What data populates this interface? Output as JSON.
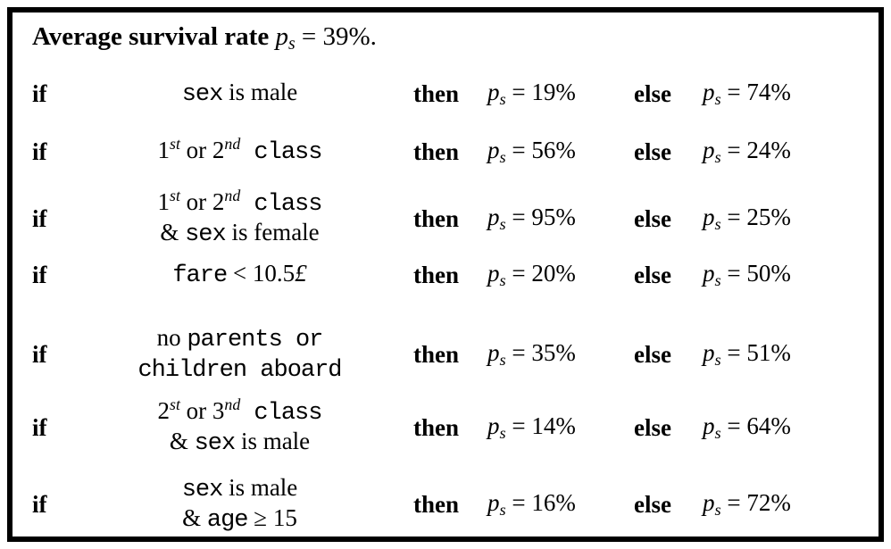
{
  "title": {
    "label": "Average survival rate",
    "math_var": "p",
    "math_sub": "s",
    "math_rest": "= 39%."
  },
  "keywords": {
    "if": "if",
    "then": "then",
    "else": "else"
  },
  "math": {
    "var": "p",
    "sub": "s"
  },
  "rules": [
    {
      "condition_lines": [
        [
          {
            "f": "mono",
            "t": "sex"
          },
          {
            "f": "roman",
            "t": " is male"
          }
        ]
      ],
      "then_value": "= 19%",
      "else_value": "= 74%"
    },
    {
      "condition_lines": [
        [
          {
            "f": "roman",
            "t": "1"
          },
          {
            "f": "sup",
            "t": "st"
          },
          {
            "f": "roman",
            "t": " or 2"
          },
          {
            "f": "sup",
            "t": "nd"
          },
          {
            "f": "mono",
            "t": " class"
          }
        ]
      ],
      "then_value": "= 56%",
      "else_value": "= 24%"
    },
    {
      "condition_lines": [
        [
          {
            "f": "roman",
            "t": "1"
          },
          {
            "f": "sup",
            "t": "st"
          },
          {
            "f": "roman",
            "t": " or 2"
          },
          {
            "f": "sup",
            "t": "nd"
          },
          {
            "f": "mono",
            "t": " class"
          }
        ],
        [
          {
            "f": "roman",
            "t": "& "
          },
          {
            "f": "mono",
            "t": "sex"
          },
          {
            "f": "roman",
            "t": " is female"
          }
        ]
      ],
      "then_value": "= 95%",
      "else_value": "= 25%"
    },
    {
      "condition_lines": [
        [
          {
            "f": "mono",
            "t": "fare"
          },
          {
            "f": "roman",
            "t": " < 10.5"
          },
          {
            "f": "italic",
            "t": "£"
          }
        ]
      ],
      "then_value": "= 20%",
      "else_value": "= 50%"
    },
    {
      "condition_lines": [
        [
          {
            "f": "roman",
            "t": "no "
          },
          {
            "f": "mono",
            "t": "parents or"
          }
        ],
        [
          {
            "f": "mono",
            "t": "children aboard"
          }
        ]
      ],
      "then_value": "= 35%",
      "else_value": "= 51%"
    },
    {
      "condition_lines": [
        [
          {
            "f": "roman",
            "t": "2"
          },
          {
            "f": "sup",
            "t": "st"
          },
          {
            "f": "roman",
            "t": " or 3"
          },
          {
            "f": "sup",
            "t": "nd"
          },
          {
            "f": "mono",
            "t": " class"
          }
        ],
        [
          {
            "f": "roman",
            "t": "& "
          },
          {
            "f": "mono",
            "t": "sex"
          },
          {
            "f": "roman",
            "t": " is male"
          }
        ]
      ],
      "then_value": "= 14%",
      "else_value": "= 64%"
    },
    {
      "condition_lines": [
        [
          {
            "f": "mono",
            "t": "sex"
          },
          {
            "f": "roman",
            "t": " is male"
          }
        ],
        [
          {
            "f": "roman",
            "t": "& "
          },
          {
            "f": "mono",
            "t": "age"
          },
          {
            "f": "roman",
            "t": " ≥ 15"
          }
        ]
      ],
      "then_value": "= 16%",
      "else_value": "= 72%"
    }
  ],
  "colors": {
    "text": "#000000",
    "border": "#000000",
    "background": "#ffffff"
  }
}
